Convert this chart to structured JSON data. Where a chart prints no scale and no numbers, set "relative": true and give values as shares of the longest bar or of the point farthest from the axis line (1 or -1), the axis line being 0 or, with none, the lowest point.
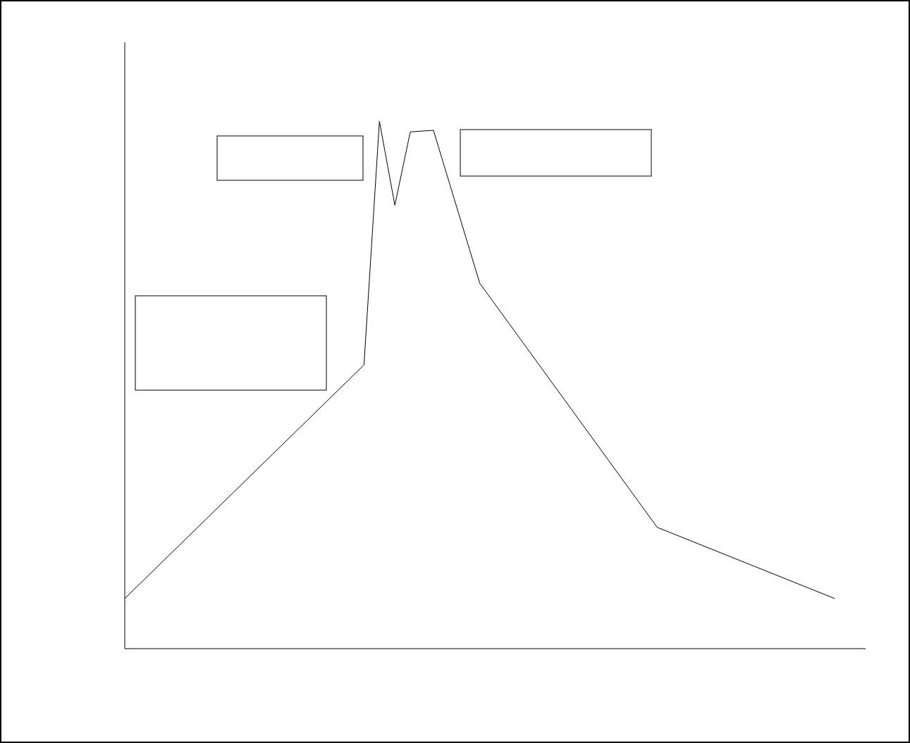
{
  "chart_data": {
    "type": "line",
    "relative": true,
    "marker": "none",
    "line_style": "solid",
    "categories": [
      null,
      null,
      null,
      null,
      null,
      null,
      null,
      null,
      null,
      null,
      null,
      null,
      null,
      null,
      null,
      null,
      null,
      null,
      null,
      null,
      null,
      null,
      null,
      null,
      null,
      null,
      null,
      null,
      null,
      null,
      null,
      null,
      null,
      null,
      null,
      null,
      null,
      null,
      null,
      null,
      null,
      null,
      null,
      null,
      null,
      null,
      null,
      null,
      null,
      null,
      null,
      null,
      null,
      null,
      null,
      null,
      null,
      null,
      null,
      null,
      null,
      null,
      null,
      null,
      null,
      null,
      null,
      null,
      null,
      null,
      null,
      null,
      null,
      null,
      null,
      null,
      null,
      null,
      null,
      null,
      null,
      null,
      null,
      null,
      null,
      null,
      null,
      null,
      null,
      null,
      null,
      null,
      null,
      null,
      null,
      null,
      null
    ],
    "series": [
      {
        "color": "#000000",
        "values": [
          0.095,
          null,
          null,
          null,
          null,
          null,
          null,
          null,
          null,
          null,
          null,
          null,
          null,
          null,
          null,
          null,
          null,
          null,
          null,
          null,
          null,
          null,
          null,
          null,
          null,
          null,
          null,
          null,
          null,
          null,
          null,
          0.538,
          null,
          1,
          null,
          0.841,
          null,
          0.98,
          null,
          null,
          0.983,
          null,
          null,
          null,
          null,
          null,
          0.693,
          null,
          null,
          null,
          null,
          null,
          null,
          null,
          null,
          null,
          null,
          null,
          null,
          null,
          null,
          null,
          null,
          null,
          null,
          null,
          null,
          null,
          null,
          0.23,
          null,
          null,
          null,
          null,
          null,
          null,
          null,
          null,
          null,
          null,
          null,
          null,
          null,
          null,
          null,
          null,
          null,
          null,
          null,
          null,
          null,
          null,
          0.095,
          null,
          null,
          null,
          null
        ]
      }
    ]
  }
}
